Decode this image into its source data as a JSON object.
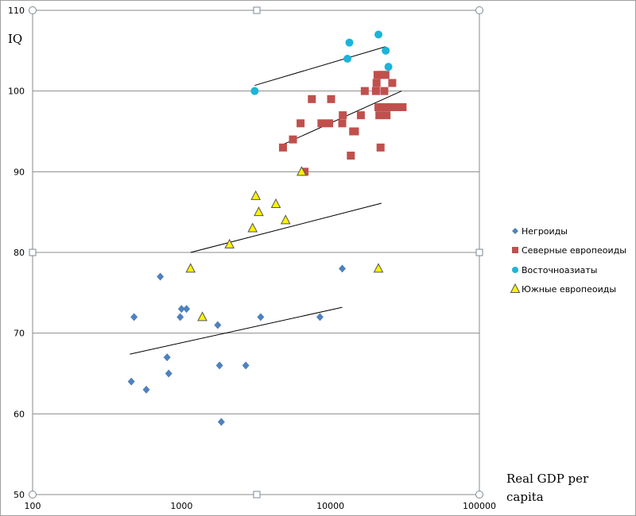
{
  "chart_data": {
    "type": "scatter",
    "title": "",
    "xlabel_line1": "Real GDP per",
    "xlabel_line2": "capita",
    "ylabel": "IQ",
    "x_scale": "log",
    "xlim": [
      100,
      100000
    ],
    "ylim": [
      50,
      110
    ],
    "x_ticks": [
      "100",
      "1000",
      "10000",
      "100000"
    ],
    "y_ticks": [
      "50",
      "60",
      "70",
      "80",
      "90",
      "100",
      "110"
    ],
    "grid": "horizontal",
    "legend_position": "right",
    "series": [
      {
        "name": "Негроиды",
        "marker": "diamond",
        "color": "#4F81BD",
        "points": [
          [
            460,
            64
          ],
          [
            480,
            72
          ],
          [
            580,
            63
          ],
          [
            720,
            77
          ],
          [
            800,
            67
          ],
          [
            820,
            65
          ],
          [
            980,
            72
          ],
          [
            1000,
            73
          ],
          [
            1080,
            73
          ],
          [
            1750,
            71
          ],
          [
            1800,
            66
          ],
          [
            1850,
            59
          ],
          [
            2700,
            66
          ],
          [
            3400,
            72
          ],
          [
            8500,
            72
          ],
          [
            12000,
            78
          ]
        ],
        "trend": [
          [
            450,
            67.4
          ],
          [
            12000,
            73.2
          ]
        ]
      },
      {
        "name": "Северные европеоиды",
        "marker": "square",
        "color": "#C0504D",
        "points": [
          [
            4800,
            93
          ],
          [
            5600,
            94
          ],
          [
            6300,
            96
          ],
          [
            6700,
            90
          ],
          [
            7500,
            99
          ],
          [
            8700,
            96
          ],
          [
            9800,
            96
          ],
          [
            10100,
            99
          ],
          [
            12000,
            96
          ],
          [
            12100,
            97
          ],
          [
            13700,
            92
          ],
          [
            14200,
            95
          ],
          [
            14600,
            95
          ],
          [
            16000,
            97
          ],
          [
            17000,
            100
          ],
          [
            20200,
            100
          ],
          [
            20400,
            101
          ],
          [
            20700,
            102
          ],
          [
            21000,
            98
          ],
          [
            21300,
            97
          ],
          [
            21700,
            93
          ],
          [
            22200,
            102
          ],
          [
            22700,
            98
          ],
          [
            23000,
            100
          ],
          [
            23400,
            102
          ],
          [
            23800,
            97
          ],
          [
            24300,
            98
          ],
          [
            26000,
            101
          ],
          [
            26500,
            98
          ],
          [
            28500,
            98
          ],
          [
            30500,
            98
          ]
        ],
        "trend": [
          [
            4700,
            93.3
          ],
          [
            30000,
            100
          ]
        ]
      },
      {
        "name": "Восточноазиаты",
        "marker": "circle",
        "color": "#1CB4D8",
        "points": [
          [
            3100,
            100
          ],
          [
            13000,
            104
          ],
          [
            13400,
            106
          ],
          [
            21000,
            107
          ],
          [
            23500,
            105
          ],
          [
            24500,
            103
          ]
        ],
        "trend": [
          [
            3100,
            100.7
          ],
          [
            23500,
            105.5
          ]
        ]
      },
      {
        "name": "Южные европеоиды",
        "marker": "triangle",
        "color": "#FFF200",
        "points": [
          [
            1150,
            78
          ],
          [
            1380,
            72
          ],
          [
            2100,
            81
          ],
          [
            3000,
            83
          ],
          [
            3150,
            87
          ],
          [
            3300,
            85
          ],
          [
            4300,
            86
          ],
          [
            5000,
            84
          ],
          [
            6400,
            90
          ],
          [
            21000,
            78
          ]
        ],
        "trend": [
          [
            1150,
            80
          ],
          [
            22000,
            86.1
          ]
        ]
      }
    ]
  }
}
